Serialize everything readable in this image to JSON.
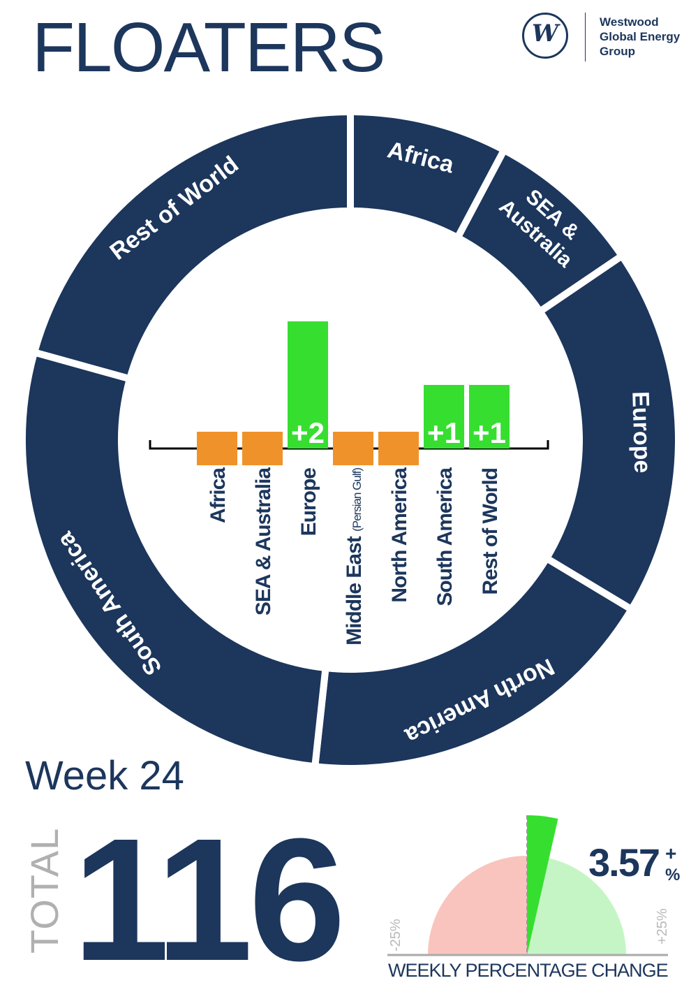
{
  "header": {
    "title": "FLOATERS"
  },
  "logo": {
    "mark": "W",
    "lines": [
      "Westwood",
      "Global Energy",
      "Group"
    ]
  },
  "colors": {
    "navy": "#1c365c",
    "increase": "#36de30",
    "no_change": "#f0922a",
    "gauge_negative": "#f9c4bd",
    "gauge_positive": "#c5f5c5",
    "muted": "#b0b0b0"
  },
  "chart_data": [
    {
      "type": "pie",
      "variant": "donut",
      "categories": [
        "Africa",
        "SEA & Australia",
        "Europe",
        "North America",
        "South America",
        "Rest of World"
      ],
      "label_lines": [
        [
          "Africa"
        ],
        [
          "SEA &",
          "Australia"
        ],
        [
          "Europe"
        ],
        [
          "North America"
        ],
        [
          "South America"
        ],
        [
          "Rest of World"
        ]
      ],
      "values": [
        9,
        9,
        21,
        21,
        32,
        24
      ]
    },
    {
      "type": "bar",
      "title": "",
      "categories": [
        "Africa",
        "SEA & Australia",
        "Europe",
        "Middle East",
        "North America",
        "South America",
        "Rest of World"
      ],
      "category_notes": [
        "",
        "",
        "",
        "(Persian Gulf)",
        "",
        "",
        ""
      ],
      "values": [
        0,
        0,
        2,
        0,
        0,
        1,
        1
      ],
      "data_labels": [
        "",
        "",
        "+2",
        "",
        "",
        "+1",
        "+1"
      ]
    },
    {
      "type": "gauge",
      "value": 3.57,
      "range": [
        -25,
        25
      ],
      "min_label": "-25%",
      "max_label": "+25%",
      "caption": "WEEKLY PERCENTAGE CHANGE"
    }
  ],
  "summary": {
    "week": "Week 24",
    "total_label": "TOTAL",
    "total": "116",
    "change_value": "3.57",
    "change_sign": "+",
    "change_unit": "%"
  }
}
